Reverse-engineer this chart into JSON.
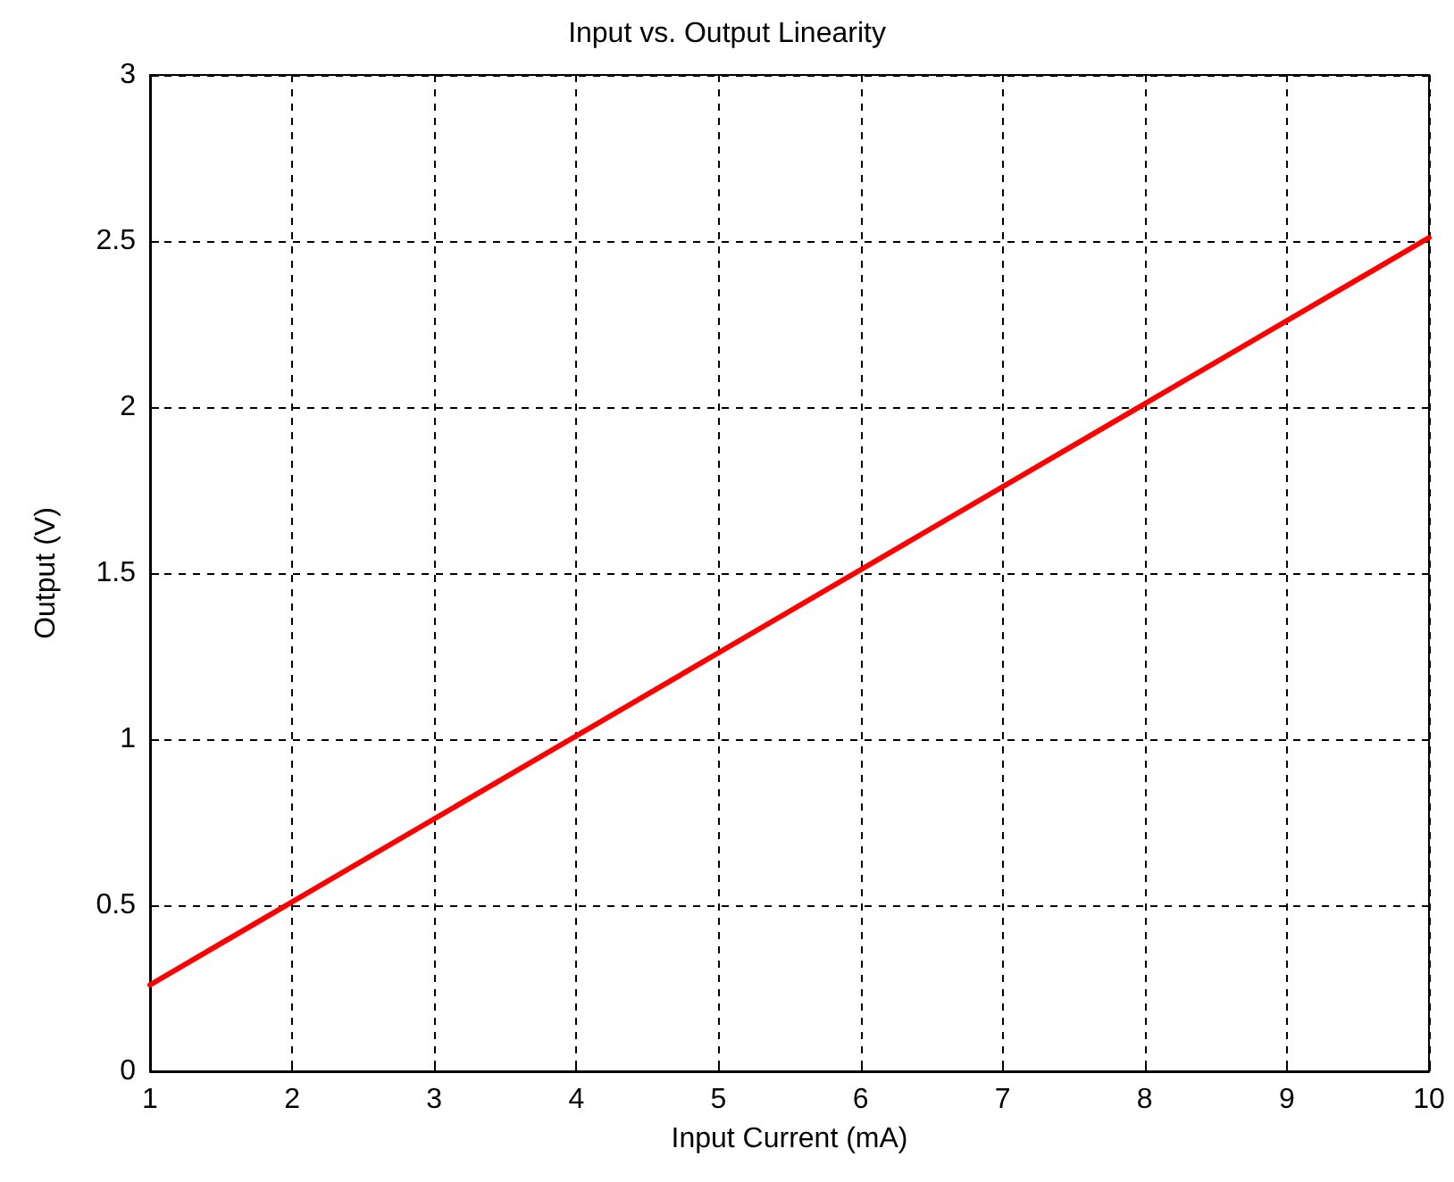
{
  "chart_data": {
    "type": "line",
    "title": "Input vs. Output Linearity",
    "xlabel": "Input Current (mA)",
    "ylabel": "Output (V)",
    "x": [
      1,
      2,
      3,
      4,
      5,
      6,
      7,
      8,
      9,
      10
    ],
    "series": [
      {
        "color": "#ff0000",
        "values": [
          0.26,
          0.51,
          0.76,
          1.01,
          1.26,
          1.51,
          1.76,
          2.01,
          2.26,
          2.51
        ]
      }
    ],
    "xlim": [
      1,
      10
    ],
    "xticks": [
      1,
      2,
      3,
      4,
      5,
      6,
      7,
      8,
      9,
      10
    ],
    "ylim": [
      0,
      3
    ],
    "yticks": [
      0,
      {
        "value": 0.5,
        "label": "0.5"
      },
      1,
      {
        "value": 1.5,
        "label": "1.5"
      },
      2,
      {
        "value": 2.5,
        "label": "2.5"
      },
      3
    ],
    "grid": true,
    "line_style": "solid",
    "marker": "none"
  }
}
